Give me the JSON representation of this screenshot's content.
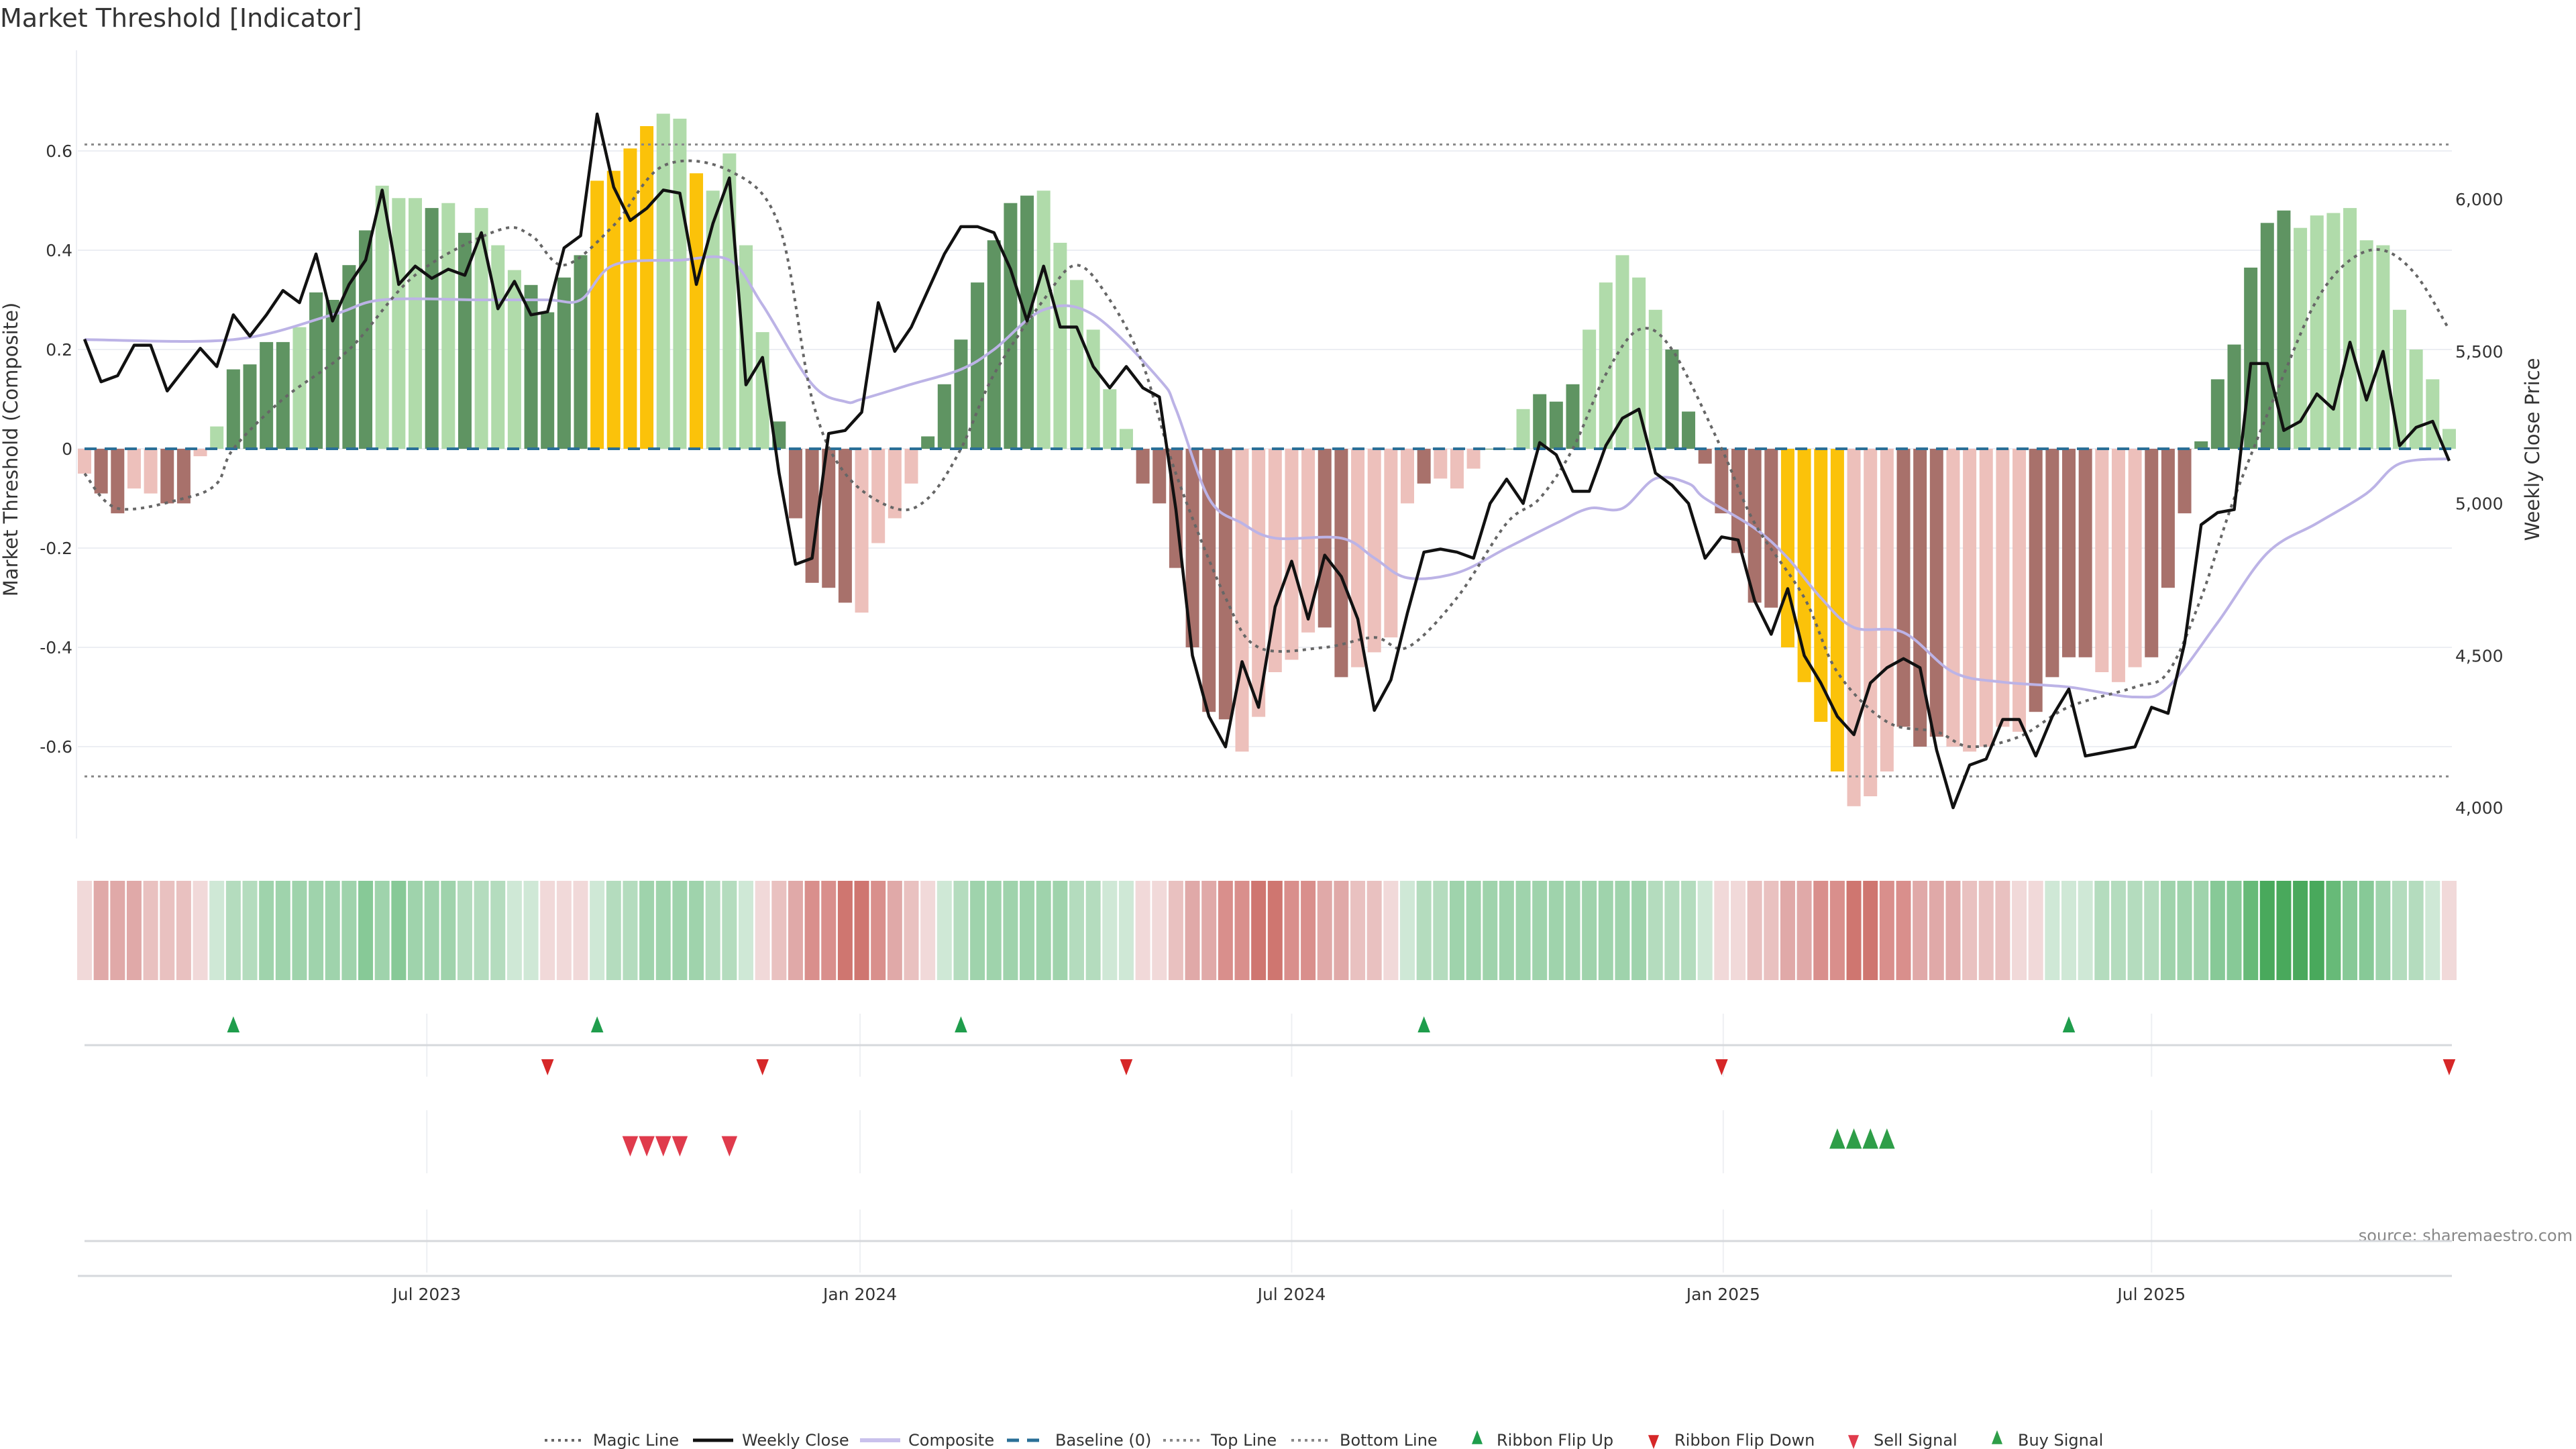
{
  "chart_data": {
    "type": "bar",
    "title": "Market Threshold [Indicator]",
    "ylabel": "Market Threshold (Composite)",
    "y2label": "Weekly Close Price",
    "ylim": [
      -0.75,
      0.72
    ],
    "y2lim": [
      3900,
      6300
    ],
    "yticks": [
      {
        "v": -0.6,
        "label": "-0.6"
      },
      {
        "v": -0.4,
        "label": "-0.4"
      },
      {
        "v": -0.2,
        "label": "-0.2"
      },
      {
        "v": 0,
        "label": "0"
      },
      {
        "v": 0.2,
        "label": "0.2"
      },
      {
        "v": 0.4,
        "label": "0.4"
      },
      {
        "v": 0.6,
        "label": "0.6"
      }
    ],
    "y2ticks": [
      {
        "v": 4000,
        "label": "4,000"
      },
      {
        "v": 4500,
        "label": "4,500"
      },
      {
        "v": 5000,
        "label": "5,000"
      },
      {
        "v": 5500,
        "label": "5,500"
      },
      {
        "v": 6000,
        "label": "6,000"
      }
    ],
    "xticks": [
      {
        "week": 20.7,
        "label": "Jul 2023"
      },
      {
        "week": 46.9,
        "label": "Jan 2024"
      },
      {
        "week": 73,
        "label": "Jul 2024"
      },
      {
        "week": 99.1,
        "label": "Jan 2025"
      },
      {
        "week": 125,
        "label": "Jul 2025"
      }
    ],
    "top_line": 0.613,
    "bottom_line": -0.66,
    "baseline": 0,
    "colors": {
      "green_dark": "#5f9462",
      "green_light": "#b0dbaa",
      "red_dark": "#a8716b",
      "red_light": "#edc0bb",
      "gold": "#fbc20a",
      "weekly_close": "#111111",
      "composite": "#bcb3e6",
      "magic": "#666666",
      "baseline": "#2a6f97",
      "flip_up": "#1f9d4c",
      "flip_down": "#d62728",
      "sell": "#e03b4c",
      "buy": "#2e9e48"
    },
    "composite_bars": [
      -0.05,
      -0.09,
      -0.13,
      -0.08,
      -0.09,
      -0.11,
      -0.11,
      -0.015,
      0.045,
      0.16,
      0.17,
      0.215,
      0.215,
      0.245,
      0.315,
      0.3,
      0.37,
      0.44,
      0.53,
      0.505,
      0.505,
      0.485,
      0.495,
      0.435,
      0.485,
      0.41,
      0.36,
      0.33,
      0.275,
      0.345,
      0.39,
      0.54,
      0.56,
      0.605,
      0.65,
      0.675,
      0.665,
      0.555,
      0.52,
      0.595,
      0.41,
      0.235,
      0.055,
      -0.14,
      -0.27,
      -0.28,
      -0.31,
      -0.33,
      -0.19,
      -0.14,
      -0.07,
      0.025,
      0.13,
      0.22,
      0.335,
      0.42,
      0.495,
      0.51,
      0.52,
      0.415,
      0.34,
      0.24,
      0.12,
      0.04,
      -0.07,
      -0.11,
      -0.24,
      -0.4,
      -0.53,
      -0.545,
      -0.61,
      -0.54,
      -0.45,
      -0.425,
      -0.37,
      -0.36,
      -0.46,
      -0.44,
      -0.41,
      -0.38,
      -0.11,
      -0.07,
      -0.06,
      -0.08,
      -0.04,
      0,
      0,
      0.08,
      0.11,
      0.095,
      0.13,
      0.24,
      0.335,
      0.39,
      0.345,
      0.28,
      0.2,
      0.075,
      -0.03,
      -0.13,
      -0.21,
      -0.31,
      -0.32,
      -0.4,
      -0.47,
      -0.55,
      -0.65,
      -0.72,
      -0.7,
      -0.65,
      -0.56,
      -0.6,
      -0.58,
      -0.6,
      -0.61,
      -0.6,
      -0.56,
      -0.57,
      -0.53,
      -0.46,
      -0.42,
      -0.42,
      -0.45,
      -0.47,
      -0.44,
      -0.42,
      -0.28,
      -0.13,
      0.015,
      0.14,
      0.21,
      0.365,
      0.455,
      0.48,
      0.445,
      0.47,
      0.475,
      0.485,
      0.42,
      0.41,
      0.28,
      0.2,
      0.14,
      0.04
    ],
    "bar_shade": "lddllddllddddlddddllldldlllddddggggllglllldddddlllldddddddllllllddddddlllllddlllldlllddldddllllldddddddggggllldddlllllddddllldddddddddlllllll",
    "weekly_close": [
      5540,
      5400,
      5420,
      5520,
      5520,
      5370,
      5440,
      5510,
      5450,
      5620,
      5550,
      5620,
      5700,
      5660,
      5820,
      5600,
      5720,
      5800,
      6030,
      5720,
      5780,
      5740,
      5770,
      5750,
      5890,
      5640,
      5730,
      5620,
      5630,
      5840,
      5880,
      6280,
      6040,
      5930,
      5970,
      6030,
      6020,
      5720,
      5920,
      6070,
      5390,
      5480,
      5100,
      4800,
      4820,
      5230,
      5240,
      5300,
      5660,
      5500,
      5580,
      5700,
      5820,
      5910,
      5910,
      5890,
      5770,
      5600,
      5780,
      5580,
      5580,
      5450,
      5380,
      5450,
      5380,
      5350,
      4980,
      4500,
      4300,
      4200,
      4480,
      4330,
      4660,
      4810,
      4620,
      4830,
      4760,
      4620,
      4320,
      4420,
      4640,
      4840,
      4850,
      4840,
      4820,
      5000,
      5080,
      5000,
      5200,
      5160,
      5040,
      5040,
      5190,
      5280,
      5310,
      5100,
      5060,
      5000,
      4820,
      4890,
      4880,
      4680,
      4570,
      4720,
      4500,
      4410,
      4300,
      4240,
      4410,
      4460,
      4490,
      4460,
      4190,
      4000,
      4140,
      4160,
      4290,
      4290,
      4170,
      4300,
      4390,
      4170,
      4180,
      4190,
      4200,
      4330,
      4310,
      4540,
      4930,
      4970,
      4980,
      5460,
      5460,
      5240,
      5270,
      5360,
      5310,
      5530,
      5340,
      5500,
      5190,
      5250,
      5270,
      5140
    ],
    "composite_line": [
      [
        0,
        0.22
      ],
      [
        9,
        0.22
      ],
      [
        15,
        0.27
      ],
      [
        18,
        0.3
      ],
      [
        24,
        0.3
      ],
      [
        28,
        0.3
      ],
      [
        30,
        0.3
      ],
      [
        32,
        0.37
      ],
      [
        36,
        0.38
      ],
      [
        39,
        0.38
      ],
      [
        41,
        0.29
      ],
      [
        44,
        0.13
      ],
      [
        46,
        0.095
      ],
      [
        47,
        0.1
      ],
      [
        50,
        0.13
      ],
      [
        53,
        0.16
      ],
      [
        55,
        0.2
      ],
      [
        58,
        0.28
      ],
      [
        61,
        0.27
      ],
      [
        65,
        0.14
      ],
      [
        66,
        0.08
      ],
      [
        68,
        -0.1
      ],
      [
        70,
        -0.15
      ],
      [
        72,
        -0.18
      ],
      [
        76,
        -0.18
      ],
      [
        78,
        -0.22
      ],
      [
        80,
        -0.26
      ],
      [
        83,
        -0.25
      ],
      [
        86,
        -0.2
      ],
      [
        89,
        -0.15
      ],
      [
        91,
        -0.12
      ],
      [
        93,
        -0.12
      ],
      [
        95,
        -0.06
      ],
      [
        97,
        -0.07
      ],
      [
        98,
        -0.1
      ],
      [
        101,
        -0.16
      ],
      [
        103,
        -0.22
      ],
      [
        105,
        -0.3
      ],
      [
        107,
        -0.36
      ],
      [
        110,
        -0.37
      ],
      [
        113,
        -0.45
      ],
      [
        116,
        -0.47
      ],
      [
        120,
        -0.48
      ],
      [
        124,
        -0.5
      ],
      [
        126,
        -0.48
      ],
      [
        129,
        -0.35
      ],
      [
        132,
        -0.21
      ],
      [
        135,
        -0.15
      ],
      [
        138,
        -0.09
      ],
      [
        140,
        -0.03
      ],
      [
        143,
        -0.02
      ]
    ],
    "magic_line": [
      [
        0,
        -0.05
      ],
      [
        2,
        -0.12
      ],
      [
        6,
        -0.1
      ],
      [
        8,
        -0.07
      ],
      [
        9,
        0
      ],
      [
        12,
        0.1
      ],
      [
        16,
        0.2
      ],
      [
        20,
        0.35
      ],
      [
        25,
        0.44
      ],
      [
        27,
        0.43
      ],
      [
        29,
        0.37
      ],
      [
        32,
        0.45
      ],
      [
        35,
        0.57
      ],
      [
        39,
        0.56
      ],
      [
        42,
        0.45
      ],
      [
        44,
        0.1
      ],
      [
        46,
        -0.05
      ],
      [
        49,
        -0.12
      ],
      [
        51,
        -0.1
      ],
      [
        53,
        0
      ],
      [
        55,
        0.15
      ],
      [
        58,
        0.3
      ],
      [
        60,
        0.37
      ],
      [
        62,
        0.3
      ],
      [
        64,
        0.17
      ],
      [
        66,
        -0.05
      ],
      [
        69,
        -0.3
      ],
      [
        71,
        -0.4
      ],
      [
        75,
        -0.4
      ],
      [
        78,
        -0.38
      ],
      [
        80,
        -0.4
      ],
      [
        83,
        -0.3
      ],
      [
        86,
        -0.15
      ],
      [
        88,
        -0.1
      ],
      [
        90,
        0
      ],
      [
        92,
        0.15
      ],
      [
        94,
        0.24
      ],
      [
        96,
        0.2
      ],
      [
        99,
        0
      ],
      [
        101,
        -0.15
      ],
      [
        104,
        -0.3
      ],
      [
        106,
        -0.45
      ],
      [
        109,
        -0.55
      ],
      [
        112,
        -0.57
      ],
      [
        114,
        -0.6
      ],
      [
        117,
        -0.58
      ],
      [
        120,
        -0.52
      ],
      [
        124,
        -0.48
      ],
      [
        126,
        -0.45
      ],
      [
        128,
        -0.3
      ],
      [
        130,
        -0.1
      ],
      [
        133,
        0.15
      ],
      [
        135,
        0.3
      ],
      [
        137,
        0.38
      ],
      [
        139,
        0.4
      ],
      [
        141,
        0.35
      ],
      [
        143,
        0.24
      ]
    ],
    "ribbon": [
      -1,
      -3,
      -3,
      -3,
      -2,
      -2,
      -2,
      -1,
      1,
      2,
      2,
      3,
      3,
      3,
      3,
      3,
      3,
      4,
      3,
      4,
      3,
      3,
      3,
      2,
      2,
      2,
      1,
      1,
      -1,
      -1,
      -1,
      1,
      2,
      2,
      3,
      3,
      3,
      3,
      2,
      2,
      1,
      -1,
      -2,
      -3,
      -4,
      -4,
      -5,
      -5,
      -4,
      -3,
      -2,
      -1,
      1,
      2,
      3,
      3,
      3,
      3,
      3,
      3,
      2,
      2,
      1,
      1,
      -1,
      -1,
      -2,
      -3,
      -3,
      -4,
      -4,
      -5,
      -5,
      -4,
      -4,
      -3,
      -3,
      -2,
      -2,
      -1,
      1,
      2,
      2,
      3,
      3,
      3,
      3,
      3,
      3,
      3,
      3,
      3,
      3,
      3,
      3,
      2,
      2,
      2,
      1,
      -1,
      -1,
      -2,
      -2,
      -3,
      -3,
      -4,
      -4,
      -5,
      -5,
      -4,
      -4,
      -3,
      -3,
      -3,
      -2,
      -2,
      -2,
      -1,
      -1,
      1,
      1,
      1,
      2,
      2,
      2,
      2,
      3,
      3,
      3,
      4,
      4,
      5,
      6,
      6,
      6,
      6,
      5,
      4,
      4,
      3,
      2,
      2,
      1,
      -1
    ],
    "ribbon_flip_up": [
      9,
      31,
      53,
      81,
      120
    ],
    "ribbon_flip_down": [
      28,
      41,
      63,
      99,
      143
    ],
    "sell_signal": [
      33,
      34,
      35,
      36,
      39
    ],
    "buy_signal": [
      106,
      107,
      108,
      109
    ],
    "legend": [
      {
        "label": "Magic Line",
        "kind": "dotted",
        "color": "#666666"
      },
      {
        "label": "Weekly Close",
        "kind": "solid",
        "color": "#111111"
      },
      {
        "label": "Composite",
        "kind": "solid-thick",
        "color": "#c9c1ec"
      },
      {
        "label": "Baseline (0)",
        "kind": "dashed",
        "color": "#2a6f97"
      },
      {
        "label": "Top Line",
        "kind": "dotted",
        "color": "#888888"
      },
      {
        "label": "Bottom Line",
        "kind": "dotted",
        "color": "#888888"
      },
      {
        "label": "Ribbon Flip Up",
        "kind": "tri-up",
        "color": "#1f9d4c"
      },
      {
        "label": "Ribbon Flip Down",
        "kind": "tri-down",
        "color": "#d62728"
      },
      {
        "label": "Sell Signal",
        "kind": "tri-down",
        "color": "#e03b4c"
      },
      {
        "label": "Buy Signal",
        "kind": "tri-up",
        "color": "#2e9e48"
      }
    ],
    "source": "source: sharemaestro.com"
  }
}
